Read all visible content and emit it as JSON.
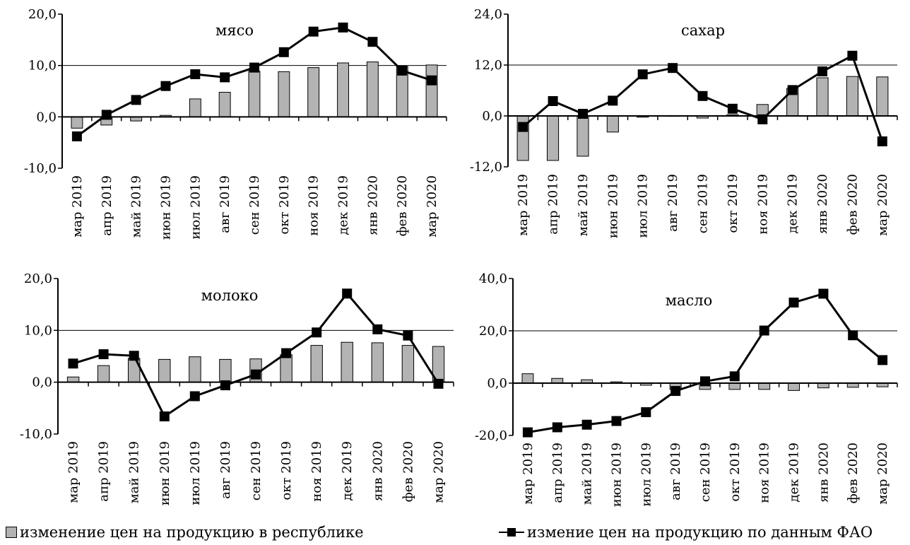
{
  "legend": {
    "bars_label": "изменение цен на продукцию в республике",
    "line_label": "измение цен на продукцию по данным ФАО"
  },
  "colors": {
    "bar_fill": "#b3b3b3",
    "bar_stroke": "#000000",
    "line": "#000000"
  },
  "chart_data": [
    {
      "type": "bar+line",
      "title": "мясо",
      "categories": [
        "мар 2019",
        "апр 2019",
        "май 2019",
        "июн 2019",
        "июл 2019",
        "авг 2019",
        "сен 2019",
        "окт 2019",
        "ноя 2019",
        "дек 2019",
        "янв 2020",
        "фев 2020",
        "мар 2020"
      ],
      "yticks": [
        "20,0",
        "10,0",
        "0,0",
        "-10,0"
      ],
      "ylim": [
        -10,
        20
      ],
      "gridline_at": 10,
      "series": [
        {
          "kind": "bar",
          "values": [
            -2.2,
            -1.6,
            -0.8,
            0.3,
            3.5,
            4.8,
            8.9,
            8.8,
            9.6,
            10.5,
            10.7,
            9.8,
            10.1
          ]
        },
        {
          "kind": "line",
          "values": [
            -3.8,
            0.4,
            3.3,
            6.0,
            8.3,
            7.7,
            9.6,
            12.6,
            16.6,
            17.4,
            14.6,
            9.0,
            7.1
          ]
        }
      ]
    },
    {
      "type": "bar+line",
      "title": "сахар",
      "categories": [
        "мар 2019",
        "апр 2019",
        "май 2019",
        "июн 2019",
        "июл 2019",
        "авг 2019",
        "сен 2019",
        "окт 2019",
        "ноя 2019",
        "дек 2019",
        "янв 2020",
        "фев 2020",
        "мар 2020"
      ],
      "yticks": [
        "24,0",
        "12,0",
        "0,0",
        "-12,0"
      ],
      "ylim": [
        -12,
        24
      ],
      "gridline_at": 12,
      "series": [
        {
          "kind": "bar",
          "values": [
            -10.5,
            -10.5,
            -9.5,
            -3.8,
            -0.3,
            -0.1,
            -0.5,
            0.3,
            2.7,
            6.5,
            9.0,
            9.3,
            9.2
          ]
        },
        {
          "kind": "line",
          "values": [
            -2.6,
            3.5,
            0.5,
            3.6,
            9.8,
            11.3,
            4.7,
            1.7,
            -0.8,
            6.1,
            10.5,
            14.2,
            -6.0
          ]
        }
      ]
    },
    {
      "type": "bar+line",
      "title": "молоко",
      "categories": [
        "мар 2019",
        "апр 2019",
        "май 2019",
        "июн 2019",
        "июл 2019",
        "авг 2019",
        "сен 2019",
        "окт 2019",
        "ноя 2019",
        "дек 2019",
        "янв 2020",
        "фев 2020",
        "мар 2020"
      ],
      "yticks": [
        "20,0",
        "10,0",
        "0,0",
        "-10,0"
      ],
      "ylim": [
        -10,
        20
      ],
      "gridline_at": 10,
      "series": [
        {
          "kind": "bar",
          "values": [
            1.0,
            3.2,
            4.6,
            4.4,
            4.9,
            4.4,
            4.5,
            5.3,
            7.1,
            7.7,
            7.6,
            7.1,
            6.9
          ]
        },
        {
          "kind": "line",
          "values": [
            3.6,
            5.4,
            5.1,
            -6.6,
            -2.7,
            -0.6,
            1.5,
            5.6,
            9.6,
            17.1,
            10.2,
            9.0,
            -0.3
          ]
        }
      ]
    },
    {
      "type": "bar+line",
      "title": "масло",
      "categories": [
        "мар 2019",
        "апр 2019",
        "май 2019",
        "июн 2019",
        "июл 2019",
        "авг 2019",
        "сен 2019",
        "окт 2019",
        "ноя 2019",
        "дек 2019",
        "янв 2020",
        "фев 2020",
        "мар 2020"
      ],
      "yticks": [
        "40,0",
        "20,0",
        "0,0",
        "-20,0"
      ],
      "ylim": [
        -20,
        40
      ],
      "gridline_at": 20,
      "series": [
        {
          "kind": "bar",
          "values": [
            3.6,
            1.8,
            1.3,
            0.5,
            -0.8,
            -2.4,
            -2.4,
            -2.4,
            -2.4,
            -2.8,
            -1.8,
            -1.6,
            -1.4
          ]
        },
        {
          "kind": "line",
          "values": [
            -18.8,
            -16.9,
            -15.9,
            -14.5,
            -11.1,
            -3.0,
            0.7,
            2.6,
            20.1,
            30.8,
            34.2,
            18.3,
            8.8
          ]
        }
      ]
    }
  ]
}
